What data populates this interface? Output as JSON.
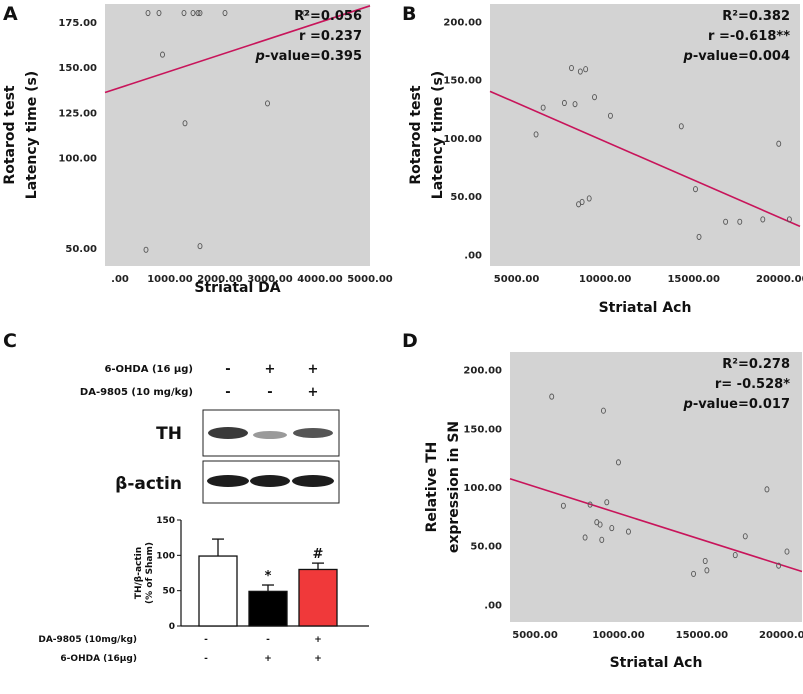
{
  "chart_data": [
    {
      "panel": "A",
      "type": "scatter",
      "xlabel": "Striatal DA",
      "ylabel": [
        "Rotarod test",
        "Latency time (s)"
      ],
      "xticks": [
        ".00",
        "1000.00",
        "2000.00",
        "3000.00",
        "4000.00",
        "5000.00"
      ],
      "yticks": [
        "50.00",
        "100.00",
        "125.00",
        "150.00",
        "175.00"
      ],
      "xlim": [
        -300,
        5000
      ],
      "ylim": [
        40,
        185
      ],
      "stats": [
        "R²=0.056",
        "r =0.237",
        "p-value=0.395"
      ],
      "points": [
        [
          560,
          180
        ],
        [
          780,
          180
        ],
        [
          1280,
          180
        ],
        [
          1460,
          180
        ],
        [
          1560,
          180
        ],
        [
          1600,
          180
        ],
        [
          2100,
          180
        ],
        [
          3700,
          180
        ],
        [
          850,
          157
        ],
        [
          1300,
          119
        ],
        [
          2950,
          130
        ],
        [
          520,
          49
        ],
        [
          1600,
          51
        ]
      ],
      "fit": [
        [
          -300,
          136
        ],
        [
          5000,
          184
        ]
      ]
    },
    {
      "panel": "B",
      "type": "scatter",
      "xlabel": "Striatal Ach",
      "ylabel": [
        "Rotarod test",
        "Latency time (s)"
      ],
      "xticks": [
        "5000.00",
        "10000.00",
        "15000.00",
        "20000.00"
      ],
      "yticks": [
        ".00",
        "50.00",
        "100.00",
        "150.00",
        "200.00"
      ],
      "xlim": [
        3500,
        21000
      ],
      "ylim": [
        -10,
        215
      ],
      "stats": [
        "R²=0.382",
        "r =-0.618**",
        "p-value=0.004"
      ],
      "points": [
        [
          6100,
          103
        ],
        [
          6500,
          126
        ],
        [
          7700,
          130
        ],
        [
          8100,
          160
        ],
        [
          8300,
          129
        ],
        [
          8600,
          157
        ],
        [
          8900,
          159
        ],
        [
          9400,
          135
        ],
        [
          10300,
          119
        ],
        [
          8500,
          43
        ],
        [
          8700,
          45
        ],
        [
          9100,
          48
        ],
        [
          14300,
          110
        ],
        [
          15100,
          56
        ],
        [
          15300,
          15
        ],
        [
          16800,
          28
        ],
        [
          17600,
          28
        ],
        [
          18900,
          30
        ],
        [
          19800,
          95
        ],
        [
          20400,
          30
        ]
      ],
      "fit": [
        [
          3500,
          140
        ],
        [
          21000,
          24
        ]
      ]
    },
    {
      "panel": "C",
      "type": "bar",
      "categories": [
        "Sham",
        "6-OHDA",
        "6-OHDA + DA-9805"
      ],
      "values": [
        99,
        49,
        80
      ],
      "errors": [
        24,
        9,
        9
      ],
      "colors": [
        "#ffffff",
        "#000000",
        "#f0393a"
      ],
      "annotations": [
        "",
        "*",
        "#"
      ],
      "ylabel": [
        "TH/β-actin",
        "(% of Sham)"
      ],
      "ylim": [
        0,
        150
      ],
      "yticks": [
        "0",
        "50",
        "100",
        "150"
      ],
      "bottom_rows": [
        {
          "label": "DA-9805 (10mg/kg)",
          "signs": [
            "-",
            "-",
            "+"
          ]
        },
        {
          "label": "6-OHDA (16μg)",
          "signs": [
            "-",
            "+",
            "+"
          ]
        }
      ]
    },
    {
      "panel": "D",
      "type": "scatter",
      "xlabel": "Striatal Ach",
      "ylabel": [
        "Relative TH",
        "expression in SN"
      ],
      "xticks": [
        "5000.00",
        "10000.00",
        "15000.00",
        "20000.00"
      ],
      "yticks": [
        ".00",
        "50.00",
        "100.00",
        "150.00",
        "200.00"
      ],
      "xlim": [
        3500,
        21000
      ],
      "ylim": [
        -15,
        215
      ],
      "stats": [
        "R²=0.278",
        "r= -0.528*",
        "p-value=0.017"
      ],
      "points": [
        [
          6000,
          177
        ],
        [
          6700,
          84
        ],
        [
          8000,
          57
        ],
        [
          8300,
          85
        ],
        [
          8700,
          70
        ],
        [
          8900,
          68
        ],
        [
          9100,
          165
        ],
        [
          9300,
          87
        ],
        [
          9600,
          65
        ],
        [
          10000,
          121
        ],
        [
          10600,
          62
        ],
        [
          9000,
          55
        ],
        [
          14500,
          26
        ],
        [
          15200,
          37
        ],
        [
          15300,
          29
        ],
        [
          17000,
          42
        ],
        [
          17600,
          58
        ],
        [
          18900,
          98
        ],
        [
          19600,
          33
        ],
        [
          20100,
          45
        ]
      ],
      "fit": [
        [
          3500,
          107
        ],
        [
          21000,
          28
        ]
      ]
    }
  ],
  "western_blot": {
    "treatments": [
      {
        "label": "6-OHDA (16 μg)",
        "signs": [
          "-",
          "+",
          "+"
        ]
      },
      {
        "label": "DA-9805 (10 mg/kg)",
        "signs": [
          "-",
          "-",
          "+"
        ]
      }
    ],
    "bands": [
      "TH",
      "β-actin"
    ]
  }
}
